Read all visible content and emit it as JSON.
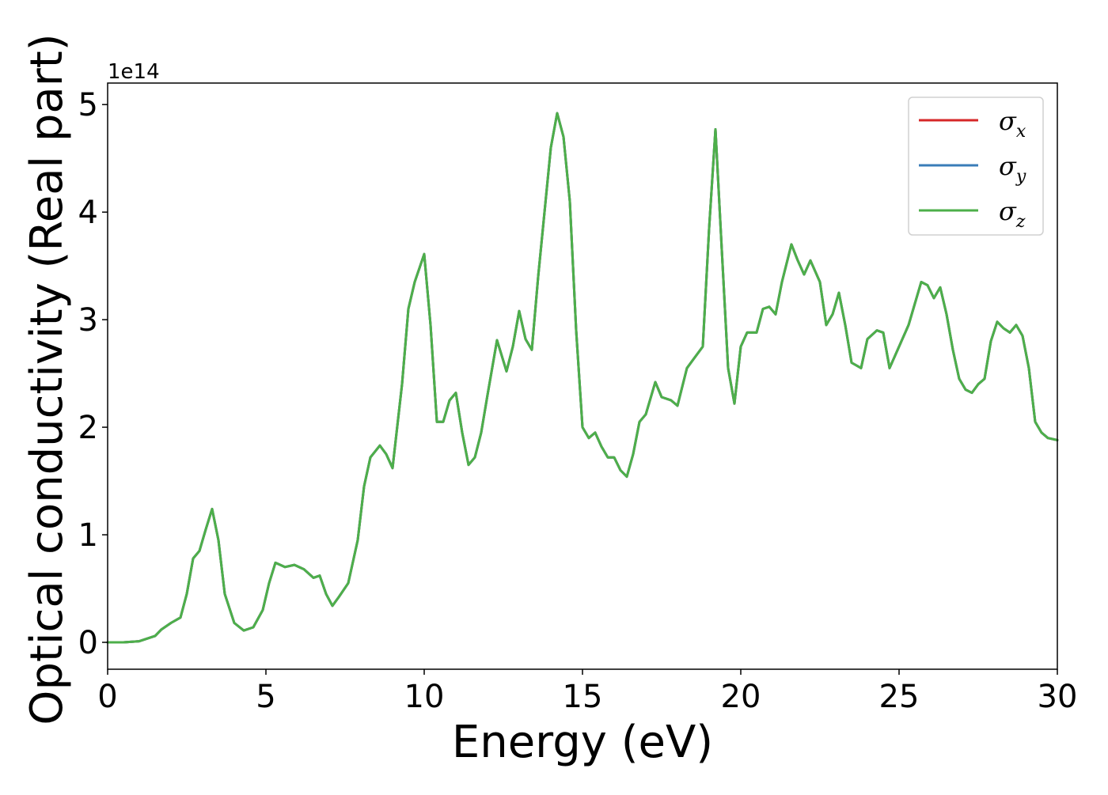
{
  "chart_data": {
    "type": "line",
    "title": "",
    "xlabel": "Energy (eV)",
    "ylabel": "Optical conductivity (Real part)",
    "y_offset_label": "1e14",
    "xlim": [
      0,
      30
    ],
    "ylim": [
      -0.25,
      5.2
    ],
    "xticks": [
      0,
      5,
      10,
      15,
      20,
      25,
      30
    ],
    "yticks": [
      0,
      1,
      2,
      3,
      4,
      5
    ],
    "grid": false,
    "legend_position": "top-right",
    "x": [
      0,
      0.5,
      1.0,
      1.5,
      1.7,
      2.0,
      2.3,
      2.5,
      2.7,
      2.9,
      3.1,
      3.3,
      3.5,
      3.7,
      4.0,
      4.3,
      4.6,
      4.9,
      5.1,
      5.3,
      5.6,
      5.9,
      6.2,
      6.5,
      6.7,
      6.9,
      7.1,
      7.3,
      7.6,
      7.9,
      8.1,
      8.3,
      8.6,
      8.8,
      9.0,
      9.3,
      9.5,
      9.7,
      10.0,
      10.2,
      10.4,
      10.6,
      10.8,
      11.0,
      11.2,
      11.4,
      11.6,
      11.8,
      12.0,
      12.3,
      12.6,
      12.8,
      13.0,
      13.2,
      13.4,
      13.6,
      13.8,
      14.0,
      14.2,
      14.4,
      14.6,
      14.8,
      15.0,
      15.2,
      15.4,
      15.6,
      15.8,
      16.0,
      16.2,
      16.4,
      16.6,
      16.8,
      17.0,
      17.3,
      17.5,
      17.8,
      18.0,
      18.3,
      18.5,
      18.8,
      19.0,
      19.2,
      19.4,
      19.6,
      19.8,
      20.0,
      20.2,
      20.5,
      20.7,
      20.9,
      21.1,
      21.3,
      21.6,
      21.8,
      22.0,
      22.2,
      22.5,
      22.7,
      22.9,
      23.1,
      23.3,
      23.5,
      23.8,
      24.0,
      24.3,
      24.5,
      24.7,
      25.0,
      25.3,
      25.5,
      25.7,
      25.9,
      26.1,
      26.3,
      26.5,
      26.7,
      26.9,
      27.1,
      27.3,
      27.5,
      27.7,
      27.9,
      28.1,
      28.3,
      28.5,
      28.7,
      28.9,
      29.1,
      29.3,
      29.5,
      29.7,
      30.0
    ],
    "series": [
      {
        "name": "σx",
        "color": "#d62728",
        "values": [
          0,
          0.0,
          0.01,
          0.06,
          0.12,
          0.18,
          0.23,
          0.45,
          0.78,
          0.85,
          1.05,
          1.24,
          0.95,
          0.45,
          0.18,
          0.11,
          0.14,
          0.3,
          0.55,
          0.74,
          0.7,
          0.72,
          0.68,
          0.6,
          0.62,
          0.45,
          0.34,
          0.42,
          0.55,
          0.95,
          1.45,
          1.72,
          1.83,
          1.75,
          1.62,
          2.4,
          3.1,
          3.35,
          3.61,
          2.95,
          2.05,
          2.05,
          2.25,
          2.32,
          1.95,
          1.65,
          1.72,
          1.95,
          2.3,
          2.81,
          2.52,
          2.75,
          3.08,
          2.82,
          2.72,
          3.4,
          4.0,
          4.6,
          4.92,
          4.7,
          4.1,
          2.9,
          2.0,
          1.9,
          1.95,
          1.82,
          1.72,
          1.72,
          1.6,
          1.54,
          1.75,
          2.05,
          2.12,
          2.42,
          2.28,
          2.25,
          2.2,
          2.55,
          2.63,
          2.75,
          3.85,
          4.77,
          3.65,
          2.55,
          2.22,
          2.75,
          2.88,
          2.88,
          3.1,
          3.12,
          3.05,
          3.35,
          3.7,
          3.55,
          3.42,
          3.55,
          3.35,
          2.95,
          3.05,
          3.25,
          2.95,
          2.6,
          2.55,
          2.82,
          2.9,
          2.88,
          2.55,
          2.75,
          2.95,
          3.15,
          3.35,
          3.32,
          3.2,
          3.3,
          3.05,
          2.72,
          2.45,
          2.35,
          2.32,
          2.4,
          2.45,
          2.8,
          2.98,
          2.92,
          2.88,
          2.95,
          2.85,
          2.55,
          2.05,
          1.95,
          1.9,
          1.88
        ]
      },
      {
        "name": "σy",
        "color": "#3a7db8",
        "values": [
          0,
          0.0,
          0.01,
          0.06,
          0.12,
          0.18,
          0.23,
          0.45,
          0.78,
          0.85,
          1.05,
          1.24,
          0.95,
          0.45,
          0.18,
          0.11,
          0.14,
          0.3,
          0.55,
          0.74,
          0.7,
          0.72,
          0.68,
          0.6,
          0.62,
          0.45,
          0.34,
          0.42,
          0.55,
          0.95,
          1.45,
          1.72,
          1.83,
          1.75,
          1.62,
          2.4,
          3.1,
          3.35,
          3.61,
          2.95,
          2.05,
          2.05,
          2.25,
          2.32,
          1.95,
          1.65,
          1.72,
          1.95,
          2.3,
          2.81,
          2.52,
          2.75,
          3.08,
          2.82,
          2.72,
          3.4,
          4.0,
          4.6,
          4.92,
          4.7,
          4.1,
          2.9,
          2.0,
          1.9,
          1.95,
          1.82,
          1.72,
          1.72,
          1.6,
          1.54,
          1.75,
          2.05,
          2.12,
          2.42,
          2.28,
          2.25,
          2.2,
          2.55,
          2.63,
          2.75,
          3.85,
          4.77,
          3.65,
          2.55,
          2.22,
          2.75,
          2.88,
          2.88,
          3.1,
          3.12,
          3.05,
          3.35,
          3.7,
          3.55,
          3.42,
          3.55,
          3.35,
          2.95,
          3.05,
          3.25,
          2.95,
          2.6,
          2.55,
          2.82,
          2.9,
          2.88,
          2.55,
          2.75,
          2.95,
          3.15,
          3.35,
          3.32,
          3.2,
          3.3,
          3.05,
          2.72,
          2.45,
          2.35,
          2.32,
          2.4,
          2.45,
          2.8,
          2.98,
          2.92,
          2.88,
          2.95,
          2.85,
          2.55,
          2.05,
          1.95,
          1.9,
          1.88
        ]
      },
      {
        "name": "σz",
        "color": "#4daf4a",
        "values": [
          0,
          0.0,
          0.01,
          0.06,
          0.12,
          0.18,
          0.23,
          0.45,
          0.78,
          0.85,
          1.05,
          1.24,
          0.95,
          0.45,
          0.18,
          0.11,
          0.14,
          0.3,
          0.55,
          0.74,
          0.7,
          0.72,
          0.68,
          0.6,
          0.62,
          0.45,
          0.34,
          0.42,
          0.55,
          0.95,
          1.45,
          1.72,
          1.83,
          1.75,
          1.62,
          2.4,
          3.1,
          3.35,
          3.61,
          2.95,
          2.05,
          2.05,
          2.25,
          2.32,
          1.95,
          1.65,
          1.72,
          1.95,
          2.3,
          2.81,
          2.52,
          2.75,
          3.08,
          2.82,
          2.72,
          3.4,
          4.0,
          4.6,
          4.92,
          4.7,
          4.1,
          2.9,
          2.0,
          1.9,
          1.95,
          1.82,
          1.72,
          1.72,
          1.6,
          1.54,
          1.75,
          2.05,
          2.12,
          2.42,
          2.28,
          2.25,
          2.2,
          2.55,
          2.63,
          2.75,
          3.85,
          4.77,
          3.65,
          2.55,
          2.22,
          2.75,
          2.88,
          2.88,
          3.1,
          3.12,
          3.05,
          3.35,
          3.7,
          3.55,
          3.42,
          3.55,
          3.35,
          2.95,
          3.05,
          3.25,
          2.95,
          2.6,
          2.55,
          2.82,
          2.9,
          2.88,
          2.55,
          2.75,
          2.95,
          3.15,
          3.35,
          3.32,
          3.2,
          3.3,
          3.05,
          2.72,
          2.45,
          2.35,
          2.32,
          2.4,
          2.45,
          2.8,
          2.98,
          2.92,
          2.88,
          2.95,
          2.85,
          2.55,
          2.05,
          1.95,
          1.9,
          1.88
        ]
      }
    ],
    "legend": [
      {
        "symbol": "σ",
        "sub": "x",
        "color": "#d62728"
      },
      {
        "symbol": "σ",
        "sub": "y",
        "color": "#3a7db8"
      },
      {
        "symbol": "σ",
        "sub": "z",
        "color": "#4daf4a"
      }
    ]
  }
}
